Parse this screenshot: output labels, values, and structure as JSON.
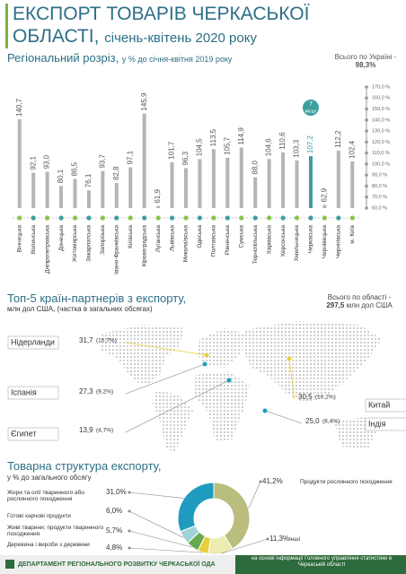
{
  "header": {
    "title_line1": "ЕКСПОРТ ТОВАРІВ ЧЕРКАСЬКОЇ",
    "title_line2": "ОБЛАСТІ,",
    "period": "січень-квітень 2020 року"
  },
  "chart_data": [
    {
      "type": "bar",
      "title": "Регіональний розріз,",
      "subtitle": "у % до січня-квітня 2019 року",
      "categories": [
        "Вінницька",
        "Волинська",
        "Дніпропетровська",
        "Донецька",
        "Житомирська",
        "Закарпатська",
        "Запорізька",
        "Івано-Франківська",
        "Київська",
        "Кіровоградська",
        "Луганська",
        "Львівська",
        "Миколаївська",
        "Одеська",
        "Полтавська",
        "Рівненська",
        "Сумська",
        "Тернопільська",
        "Харківська",
        "Херсонська",
        "Хмельницька",
        "Черкаська",
        "Чернівецька",
        "Чернігівська",
        "м. Київ"
      ],
      "values": [
        140.7,
        92.1,
        93.0,
        80.1,
        86.5,
        76.1,
        93.7,
        82.8,
        97.1,
        145.9,
        61.9,
        101.7,
        96.3,
        104.5,
        113.5,
        105.7,
        114.9,
        88.0,
        104.6,
        110.6,
        103.3,
        107.2,
        62.9,
        112.2,
        102.4
      ],
      "value_labels": [
        "140,7",
        "92,1",
        "93,0",
        "80,1",
        "86,5",
        "76,1",
        "93,7",
        "82,8",
        "97,1",
        "145,9",
        "61,9",
        "101,7",
        "96,3",
        "104,5",
        "113,5",
        "105,7",
        "114,9",
        "88,0",
        "104,6",
        "110,6",
        "103,3",
        "107,2",
        "62,9",
        "112,2",
        "102,4"
      ],
      "colors": [
        "#b5b5b5",
        "#b5b5b5",
        "#b5b5b5",
        "#b5b5b5",
        "#b5b5b5",
        "#b5b5b5",
        "#b5b5b5",
        "#b5b5b5",
        "#b5b5b5",
        "#b5b5b5",
        "#b5b5b5",
        "#b5b5b5",
        "#b5b5b5",
        "#b5b5b5",
        "#b5b5b5",
        "#b5b5b5",
        "#b5b5b5",
        "#b5b5b5",
        "#b5b5b5",
        "#b5b5b5",
        "#b5b5b5",
        "#3d9e9f",
        "#b5b5b5",
        "#b5b5b5",
        "#b5b5b5"
      ],
      "ylim": [
        60,
        170
      ],
      "yticks": [
        {
          "value": 170,
          "label": "170,0 %"
        },
        {
          "value": 160,
          "label": "160,0 %"
        },
        {
          "value": 150,
          "label": "150,0 %"
        },
        {
          "value": 140,
          "label": "140,0 %"
        },
        {
          "value": 130,
          "label": "130,0 %"
        },
        {
          "value": 120,
          "label": "120,0 %"
        },
        {
          "value": 110,
          "label": "110,0 %"
        },
        {
          "value": 100,
          "label": "100,0 %"
        },
        {
          "value": 90,
          "label": "90,0 %"
        },
        {
          "value": 80,
          "label": "80,0 %"
        },
        {
          "value": 70,
          "label": "70,0 %"
        },
        {
          "value": 60,
          "label": "60,0 %"
        }
      ],
      "annotations": {
        "total": "Всього по Україні -",
        "total_value": "98,3%",
        "rank": "7",
        "rank_label": "місце"
      }
    },
    {
      "type": "pie",
      "title": "Товарна структура експорту,",
      "subtitle": "у % до загального обсягу",
      "categories": [
        "Продукти рослинного походження",
        "Інші",
        "Деревина і вироби з деревини",
        "Живі тварини; продукти тваринного походження",
        "Готові харчові продукти",
        "Жири та олії тваринного або рослинного походження"
      ],
      "values": [
        41.2,
        11.3,
        4.8,
        5.7,
        6.0,
        31.0
      ],
      "value_labels": [
        "41,2%",
        "11,3%",
        "4,8%",
        "5,7%",
        "6,0%",
        "31,0%"
      ],
      "colors": [
        "#b9bd7d",
        "#ecebb0",
        "#e7cf3a",
        "#6aa84f",
        "#9fd3d8",
        "#1f9bbf"
      ]
    }
  ],
  "partners": {
    "title": "Топ-5 країн-партнерів з експорту,",
    "subtitle": "млн дол США, (частка в загальних обсягах)",
    "total": "Всього по області -",
    "total_value": "297,5",
    "total_unit": "млн дол США",
    "countries": [
      {
        "name": "Нідерланди",
        "value": "31,7",
        "share": "(10,7%)"
      },
      {
        "name": "Іспанія",
        "value": "27,3",
        "share": "(9,2%)"
      },
      {
        "name": "Єгипет",
        "value": "13,9",
        "share": "(4,7%)"
      },
      {
        "name": "Китай",
        "value": "30,5",
        "share": "(10,2%)"
      },
      {
        "name": "Індія",
        "value": "25,0",
        "share": "(8,4%)"
      }
    ]
  },
  "footer": {
    "department": "ДЕПАРТАМЕНТ РЕГІОНАЛЬНОГО РОЗВИТКУ ЧЕРКАСЬКОЇ ОДА",
    "source": "на основі інформації Головного управління статистики в Черкаській області"
  }
}
